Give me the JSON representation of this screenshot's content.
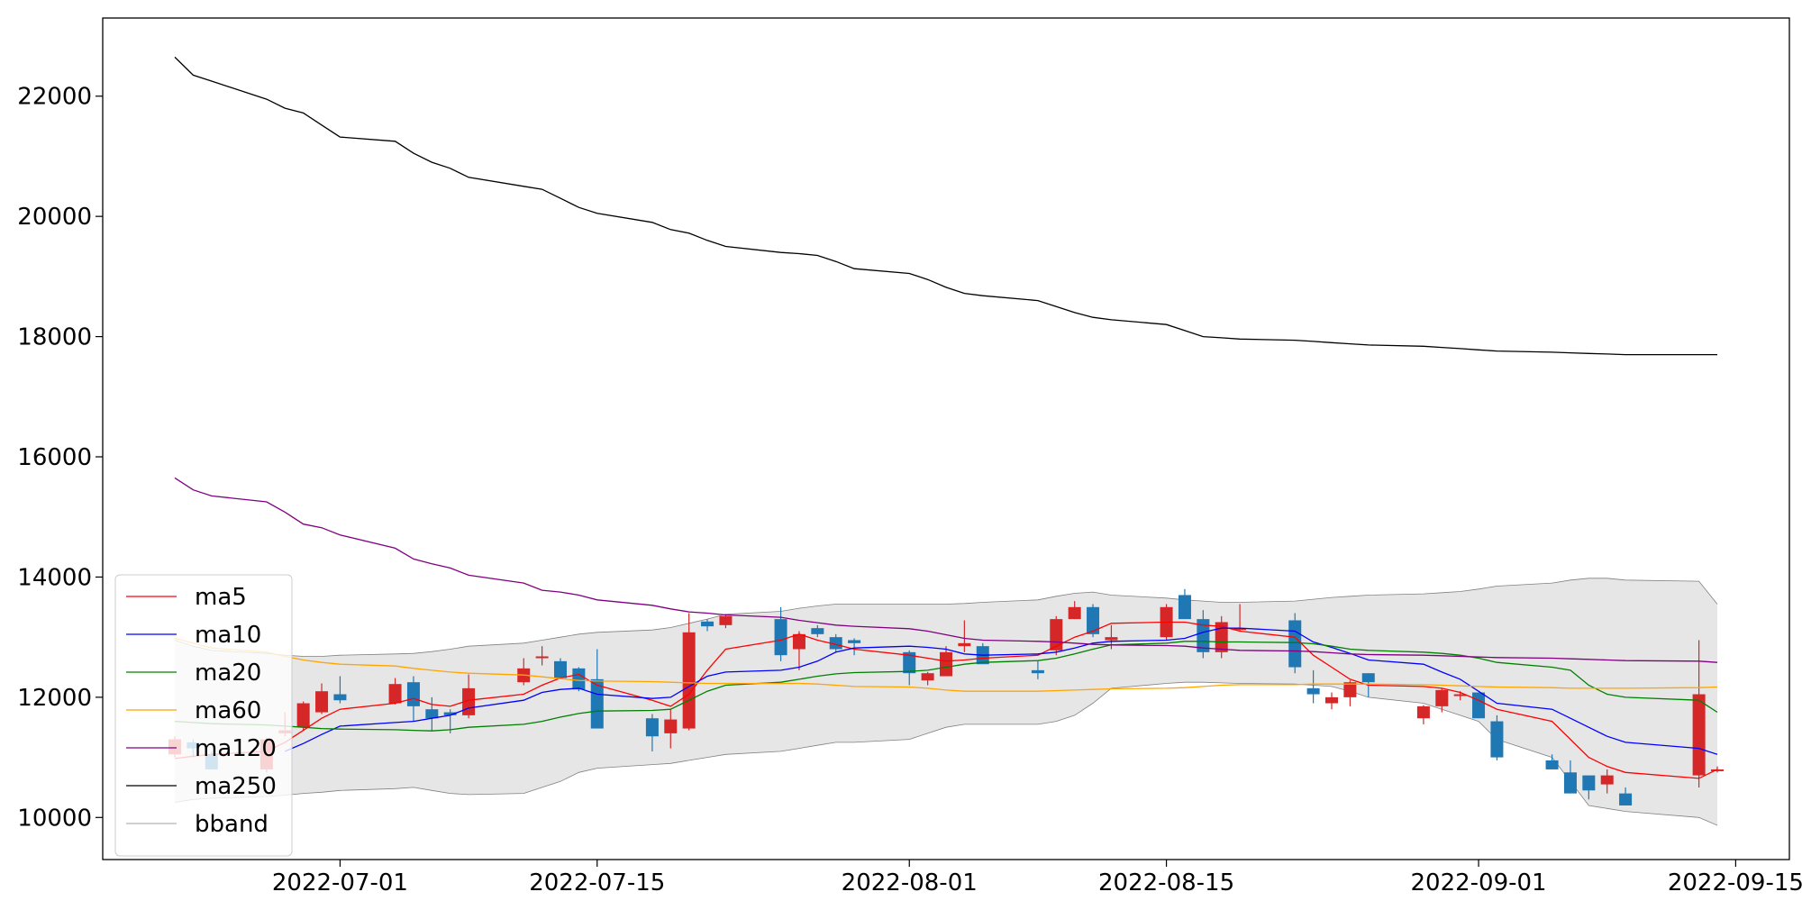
{
  "chart_data": {
    "type": "candlestick",
    "ylim": [
      9300,
      23300
    ],
    "yticks": [
      10000,
      12000,
      14000,
      16000,
      18000,
      20000,
      22000
    ],
    "xticks": [
      "2022-07-01",
      "2022-07-15",
      "2022-08-01",
      "2022-08-15",
      "2022-09-01",
      "2022-09-15"
    ],
    "dates": [
      "2022-06-22",
      "2022-06-23",
      "2022-06-24",
      "2022-06-27",
      "2022-06-28",
      "2022-06-29",
      "2022-06-30",
      "2022-07-01",
      "2022-07-04",
      "2022-07-05",
      "2022-07-06",
      "2022-07-07",
      "2022-07-08",
      "2022-07-11",
      "2022-07-12",
      "2022-07-13",
      "2022-07-14",
      "2022-07-15",
      "2022-07-18",
      "2022-07-19",
      "2022-07-20",
      "2022-07-21",
      "2022-07-22",
      "2022-07-25",
      "2022-07-26",
      "2022-07-27",
      "2022-07-28",
      "2022-07-29",
      "2022-08-01",
      "2022-08-02",
      "2022-08-03",
      "2022-08-04",
      "2022-08-05",
      "2022-08-08",
      "2022-08-09",
      "2022-08-10",
      "2022-08-11",
      "2022-08-12",
      "2022-08-15",
      "2022-08-16",
      "2022-08-17",
      "2022-08-18",
      "2022-08-19",
      "2022-08-22",
      "2022-08-23",
      "2022-08-24",
      "2022-08-25",
      "2022-08-26",
      "2022-08-29",
      "2022-08-30",
      "2022-08-31",
      "2022-09-01",
      "2022-09-02",
      "2022-09-05",
      "2022-09-06",
      "2022-09-07",
      "2022-09-08",
      "2022-09-09",
      "2022-09-13",
      "2022-09-14"
    ],
    "ohlc": [
      [
        11050,
        11350,
        11000,
        11300
      ],
      [
        11250,
        11300,
        11000,
        11150
      ],
      [
        11050,
        11100,
        10850,
        10800
      ],
      [
        10800,
        11330,
        10750,
        11300
      ],
      [
        11400,
        11750,
        11350,
        11450
      ],
      [
        11500,
        11930,
        11450,
        11900
      ],
      [
        11750,
        12230,
        11720,
        12100
      ],
      [
        12050,
        12350,
        11900,
        11950
      ],
      [
        11900,
        12320,
        11880,
        12220
      ],
      [
        12250,
        12350,
        11600,
        11850
      ],
      [
        11800,
        12000,
        11450,
        11650
      ],
      [
        11750,
        11800,
        11400,
        11700
      ],
      [
        11700,
        12380,
        11650,
        12150
      ],
      [
        12250,
        12650,
        12200,
        12480
      ],
      [
        12650,
        12850,
        12530,
        12680
      ],
      [
        12600,
        12650,
        12300,
        12320
      ],
      [
        12480,
        12500,
        12100,
        12130
      ],
      [
        12300,
        12800,
        11500,
        11480
      ],
      [
        11650,
        11720,
        11100,
        11350
      ],
      [
        11400,
        11800,
        11150,
        11630
      ],
      [
        11480,
        13400,
        11450,
        13080
      ],
      [
        13260,
        13300,
        13100,
        13180
      ],
      [
        13200,
        13380,
        13150,
        13350
      ],
      [
        13300,
        13500,
        12600,
        12700
      ],
      [
        12800,
        13100,
        12450,
        13050
      ],
      [
        13150,
        13200,
        13000,
        13050
      ],
      [
        13000,
        13050,
        12750,
        12800
      ],
      [
        12950,
        12980,
        12700,
        12900
      ],
      [
        12750,
        12780,
        12200,
        12400
      ],
      [
        12280,
        12420,
        12200,
        12400
      ],
      [
        12350,
        12850,
        12350,
        12750
      ],
      [
        12850,
        13280,
        12750,
        12900
      ],
      [
        12850,
        12900,
        12550,
        12550
      ],
      [
        12450,
        12600,
        12300,
        12400
      ],
      [
        12780,
        13350,
        12700,
        13300
      ],
      [
        13300,
        13600,
        13300,
        13500
      ],
      [
        13500,
        13550,
        13000,
        13050
      ],
      [
        12950,
        13200,
        12800,
        13000
      ],
      [
        13000,
        13550,
        12950,
        13500
      ],
      [
        13700,
        13800,
        13350,
        13300
      ],
      [
        13300,
        13450,
        12650,
        12750
      ],
      [
        12750,
        13350,
        12650,
        13250
      ],
      [
        13150,
        13550,
        13100,
        13150
      ],
      [
        13280,
        13400,
        12400,
        12500
      ],
      [
        12150,
        12450,
        11900,
        12050
      ],
      [
        11900,
        12080,
        11800,
        12000
      ],
      [
        12000,
        12280,
        11850,
        12250
      ],
      [
        12400,
        12400,
        12000,
        12250
      ],
      [
        11650,
        11870,
        11550,
        11850
      ],
      [
        11850,
        12150,
        11750,
        12120
      ],
      [
        12050,
        12100,
        11950,
        12050
      ],
      [
        12080,
        12080,
        11650,
        11650
      ],
      [
        11600,
        11700,
        10950,
        11000
      ],
      [
        10950,
        11050,
        10800,
        10800
      ],
      [
        10750,
        10950,
        10400,
        10400
      ],
      [
        10700,
        10650,
        10300,
        10450
      ],
      [
        10550,
        10800,
        10400,
        10700
      ],
      [
        10400,
        10500,
        10200,
        10200
      ],
      [
        10700,
        12950,
        10500,
        12050
      ],
      [
        10800,
        10850,
        10750,
        10800
      ]
    ],
    "series": [
      {
        "name": "ma5",
        "color": "#ff0000",
        "values": [
          10980,
          11020,
          11050,
          11100,
          11250,
          11450,
          11650,
          11800,
          11900,
          11980,
          11880,
          11850,
          11950,
          12050,
          12200,
          12320,
          12380,
          12200,
          11950,
          11850,
          12050,
          12450,
          12800,
          12950,
          13050,
          12950,
          12880,
          12800,
          12700,
          12650,
          12600,
          12620,
          12650,
          12700,
          12850,
          13000,
          13100,
          13230,
          13250,
          13250,
          13200,
          13180,
          13100,
          13000,
          12700,
          12500,
          12300,
          12200,
          12180,
          12150,
          12080,
          11950,
          11800,
          11600,
          11300,
          11000,
          10850,
          10750,
          10650,
          10800
        ]
      },
      {
        "name": "ma10",
        "color": "#0000ff",
        "values": [
          null,
          null,
          null,
          null,
          11100,
          11230,
          11380,
          11520,
          11580,
          11600,
          11650,
          11700,
          11820,
          11950,
          12080,
          12130,
          12150,
          12050,
          11980,
          12000,
          12180,
          12350,
          12420,
          12450,
          12500,
          12600,
          12750,
          12820,
          12850,
          12830,
          12800,
          12720,
          12700,
          12720,
          12750,
          12820,
          12900,
          12930,
          12950,
          12980,
          13080,
          13150,
          13150,
          13100,
          12920,
          12830,
          12730,
          12620,
          12550,
          12420,
          12300,
          12100,
          11900,
          11800,
          11650,
          11500,
          11350,
          11250,
          11150,
          11050
        ]
      },
      {
        "name": "ma20",
        "color": "#008000",
        "values": [
          11600,
          11580,
          11560,
          11540,
          11520,
          11500,
          11480,
          11470,
          11460,
          11450,
          11440,
          11460,
          11500,
          11550,
          11600,
          11670,
          11730,
          11770,
          11780,
          11800,
          11950,
          12100,
          12200,
          12250,
          12300,
          12350,
          12390,
          12410,
          12430,
          12450,
          12500,
          12550,
          12580,
          12610,
          12650,
          12720,
          12800,
          12870,
          12900,
          12930,
          12930,
          12920,
          12920,
          12910,
          12890,
          12850,
          12800,
          12780,
          12750,
          12730,
          12700,
          12650,
          12580,
          12500,
          12450,
          12200,
          12050,
          12000,
          11950,
          11750
        ]
      },
      {
        "name": "ma60",
        "color": "#ffa500",
        "values": [
          12980,
          12900,
          12820,
          12750,
          12680,
          12620,
          12580,
          12550,
          12520,
          12480,
          12450,
          12420,
          12400,
          12370,
          12340,
          12310,
          12280,
          12270,
          12260,
          12250,
          12240,
          12230,
          12230,
          12230,
          12230,
          12220,
          12200,
          12180,
          12170,
          12150,
          12120,
          12100,
          12100,
          12100,
          12110,
          12120,
          12130,
          12140,
          12150,
          12160,
          12180,
          12200,
          12210,
          12210,
          12220,
          12220,
          12220,
          12220,
          12210,
          12200,
          12190,
          12180,
          12170,
          12160,
          12150,
          12150,
          12150,
          12150,
          12160,
          12170
        ]
      },
      {
        "name": "ma120",
        "color": "#800080",
        "values": [
          15650,
          15450,
          15350,
          15250,
          15080,
          14880,
          14820,
          14700,
          14480,
          14300,
          14220,
          14150,
          14030,
          13900,
          13780,
          13750,
          13700,
          13620,
          13530,
          13470,
          13420,
          13400,
          13370,
          13330,
          13280,
          13240,
          13200,
          13180,
          13140,
          13100,
          13040,
          12980,
          12950,
          12930,
          12920,
          12900,
          12880,
          12870,
          12860,
          12850,
          12820,
          12800,
          12780,
          12770,
          12760,
          12740,
          12720,
          12710,
          12700,
          12690,
          12680,
          12670,
          12660,
          12650,
          12640,
          12630,
          12620,
          12610,
          12600,
          12580
        ]
      },
      {
        "name": "ma250",
        "color": "#000000",
        "values": [
          22650,
          22350,
          22250,
          21950,
          21800,
          21720,
          21520,
          21320,
          21250,
          21050,
          20900,
          20800,
          20650,
          20500,
          20450,
          20300,
          20150,
          20050,
          19900,
          19780,
          19720,
          19600,
          19500,
          19400,
          19380,
          19350,
          19250,
          19130,
          19050,
          18950,
          18820,
          18720,
          18680,
          18600,
          18500,
          18400,
          18320,
          18280,
          18200,
          18100,
          18000,
          17980,
          17960,
          17940,
          17920,
          17900,
          17880,
          17860,
          17840,
          17820,
          17800,
          17780,
          17760,
          17740,
          17730,
          17720,
          17710,
          17700,
          17700,
          17700
        ]
      }
    ],
    "bband": {
      "name": "bband",
      "color": "#808080",
      "fill": "#e6e6e6",
      "upper": [
        12950,
        12850,
        12780,
        12730,
        12700,
        12680,
        12680,
        12700,
        12720,
        12730,
        12760,
        12800,
        12850,
        12900,
        12950,
        13000,
        13050,
        13080,
        13120,
        13160,
        13230,
        13300,
        13380,
        13430,
        13480,
        13520,
        13550,
        13550,
        13550,
        13550,
        13550,
        13560,
        13580,
        13620,
        13680,
        13730,
        13750,
        13700,
        13650,
        13620,
        13600,
        13580,
        13580,
        13600,
        13630,
        13660,
        13680,
        13700,
        13720,
        13740,
        13760,
        13800,
        13850,
        13900,
        13950,
        13980,
        13980,
        13950,
        13930,
        13550
      ],
      "lower": [
        10250,
        10300,
        10320,
        10350,
        10370,
        10400,
        10420,
        10450,
        10480,
        10500,
        10450,
        10400,
        10380,
        10400,
        10500,
        10600,
        10750,
        10820,
        10880,
        10900,
        10950,
        11000,
        11050,
        11100,
        11150,
        11200,
        11250,
        11250,
        11300,
        11400,
        11500,
        11550,
        11550,
        11550,
        11600,
        11700,
        11900,
        12150,
        12230,
        12250,
        12250,
        12240,
        12230,
        12220,
        12200,
        12180,
        12100,
        12000,
        11900,
        11800,
        11700,
        11600,
        11300,
        11000,
        10600,
        10200,
        10150,
        10100,
        10000,
        9870
      ]
    },
    "up_color": "#d62728",
    "down_color": "#1f77b4",
    "legend": {
      "position": "lower-left",
      "entries": [
        "ma5",
        "ma10",
        "ma20",
        "ma60",
        "ma120",
        "ma250",
        "bband"
      ]
    }
  }
}
